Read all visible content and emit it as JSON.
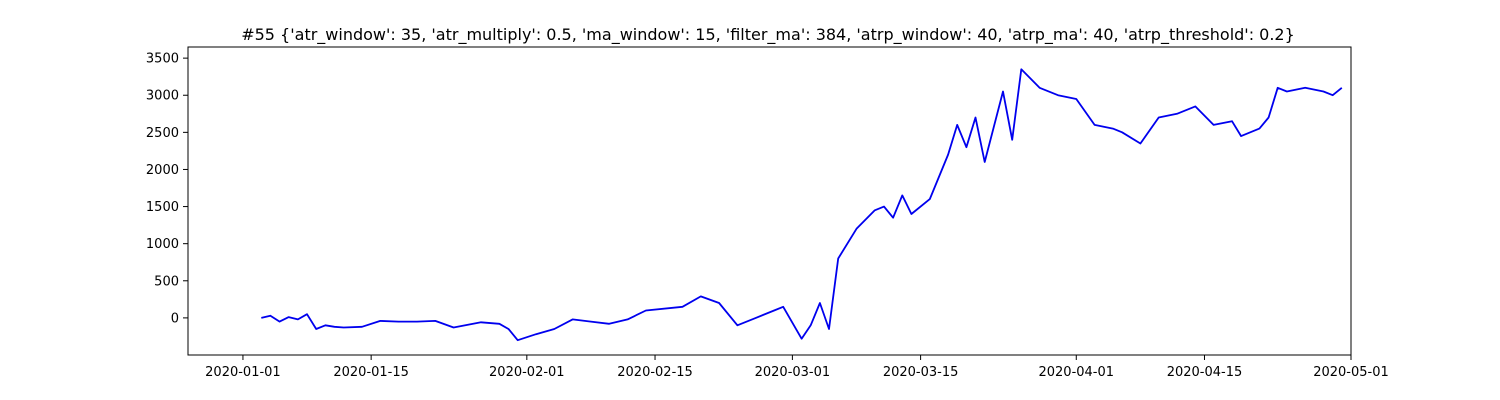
{
  "chart_data": {
    "type": "line",
    "title": "#55 {'atr_window': 35, 'atr_multiply': 0.5, 'ma_window': 15, 'filter_ma': 384, 'atrp_window': 40, 'atrp_ma': 40, 'atrp_threshold': 0.2}",
    "xlabel": "",
    "ylabel": "",
    "xlim": [
      "2019-12-26",
      "2020-05-01"
    ],
    "ylim": [
      -500,
      3650
    ],
    "grid": false,
    "line_color": "#0000ee",
    "x_ticks": [
      "2020-01-01",
      "2020-01-15",
      "2020-02-01",
      "2020-02-15",
      "2020-03-01",
      "2020-03-15",
      "2020-04-01",
      "2020-04-15",
      "2020-05-01"
    ],
    "y_ticks": [
      0,
      500,
      1000,
      1500,
      2000,
      2500,
      3000,
      3500
    ],
    "series": [
      {
        "x": [
          "2020-01-03",
          "2020-01-04",
          "2020-01-05",
          "2020-01-06",
          "2020-01-07",
          "2020-01-08",
          "2020-01-09",
          "2020-01-10",
          "2020-01-11",
          "2020-01-12",
          "2020-01-14",
          "2020-01-16",
          "2020-01-18",
          "2020-01-20",
          "2020-01-22",
          "2020-01-24",
          "2020-01-27",
          "2020-01-29",
          "2020-01-30",
          "2020-01-31",
          "2020-02-02",
          "2020-02-04",
          "2020-02-06",
          "2020-02-08",
          "2020-02-10",
          "2020-02-12",
          "2020-02-14",
          "2020-02-18",
          "2020-02-20",
          "2020-02-22",
          "2020-02-24",
          "2020-02-26",
          "2020-02-28",
          "2020-02-29",
          "2020-03-02",
          "2020-03-03",
          "2020-03-04",
          "2020-03-05",
          "2020-03-06",
          "2020-03-08",
          "2020-03-10",
          "2020-03-11",
          "2020-03-12",
          "2020-03-13",
          "2020-03-14",
          "2020-03-16",
          "2020-03-18",
          "2020-03-19",
          "2020-03-20",
          "2020-03-21",
          "2020-03-22",
          "2020-03-24",
          "2020-03-25",
          "2020-03-26",
          "2020-03-28",
          "2020-03-30",
          "2020-04-01",
          "2020-04-03",
          "2020-04-05",
          "2020-04-06",
          "2020-04-08",
          "2020-04-10",
          "2020-04-12",
          "2020-04-14",
          "2020-04-16",
          "2020-04-18",
          "2020-04-19",
          "2020-04-21",
          "2020-04-22",
          "2020-04-23",
          "2020-04-24",
          "2020-04-26",
          "2020-04-28",
          "2020-04-29",
          "2020-04-30"
        ],
        "y": [
          0,
          30,
          -50,
          10,
          -20,
          50,
          -150,
          -100,
          -120,
          -130,
          -120,
          -40,
          -50,
          -50,
          -40,
          -130,
          -60,
          -80,
          -150,
          -300,
          -220,
          -150,
          -20,
          -50,
          -80,
          -20,
          100,
          150,
          290,
          200,
          -100,
          0,
          100,
          150,
          -280,
          -100,
          200,
          -150,
          800,
          1200,
          1450,
          1500,
          1350,
          1650,
          1400,
          1600,
          2200,
          2600,
          2300,
          2700,
          2100,
          3050,
          2400,
          3350,
          3100,
          3000,
          2950,
          2600,
          2550,
          2500,
          2350,
          2700,
          2750,
          2850,
          2600,
          2650,
          2450,
          2550,
          2700,
          3100,
          3050,
          3100,
          3050,
          3000,
          3100
        ]
      }
    ]
  }
}
